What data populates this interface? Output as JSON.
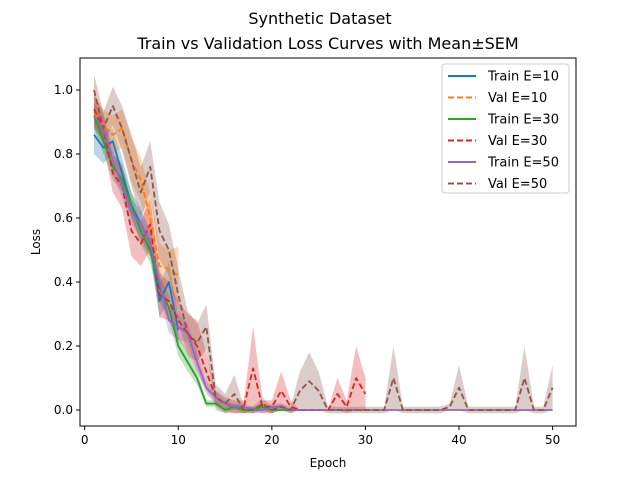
{
  "chart_data": {
    "type": "line",
    "title": "Synthetic Dataset",
    "subtitle": "Train vs Validation Loss Curves with Mean±SEM",
    "xlabel": "Epoch",
    "ylabel": "Loss",
    "xlim": [
      -0.5,
      52.5
    ],
    "ylim": [
      -0.05,
      1.1
    ],
    "xticks": [
      0,
      10,
      20,
      30,
      40,
      50
    ],
    "yticks": [
      0.0,
      0.2,
      0.4,
      0.6,
      0.8,
      1.0
    ],
    "grid": false,
    "legend_position": "top-right",
    "series": [
      {
        "name": "Train E=10",
        "color": "#1f77b4",
        "dash": "solid",
        "x": [
          1,
          2,
          3,
          4,
          5,
          6,
          7,
          8,
          9,
          10
        ],
        "y": [
          0.86,
          0.82,
          0.84,
          0.74,
          0.64,
          0.58,
          0.52,
          0.34,
          0.4,
          0.25
        ],
        "sem": [
          0.06,
          0.05,
          0.04,
          0.05,
          0.04,
          0.05,
          0.04,
          0.05,
          0.06,
          0.04
        ]
      },
      {
        "name": "Val E=10",
        "color": "#ff7f0e",
        "dash": "dashed",
        "x": [
          1,
          2,
          3,
          4,
          5,
          6,
          7,
          8,
          9,
          10
        ],
        "y": [
          0.93,
          0.89,
          0.86,
          0.88,
          0.78,
          0.72,
          0.6,
          0.45,
          0.44,
          0.42
        ],
        "sem": [
          0.05,
          0.05,
          0.06,
          0.06,
          0.07,
          0.07,
          0.08,
          0.07,
          0.06,
          0.09
        ]
      },
      {
        "name": "Train E=30",
        "color": "#2ca02c",
        "dash": "solid",
        "x": [
          1,
          2,
          3,
          4,
          5,
          6,
          7,
          8,
          9,
          10,
          11,
          12,
          13,
          14,
          15,
          16,
          17,
          18,
          19,
          20,
          21,
          22,
          23,
          24,
          25,
          26,
          27,
          28,
          29,
          30
        ],
        "y": [
          0.92,
          0.84,
          0.76,
          0.72,
          0.64,
          0.56,
          0.5,
          0.38,
          0.32,
          0.2,
          0.15,
          0.1,
          0.02,
          0.02,
          0.0,
          0.01,
          0.0,
          0.0,
          0.01,
          0.0,
          0.0,
          0.0,
          0.0,
          0.0,
          0.0,
          0.0,
          0.0,
          0.0,
          0.0,
          0.0
        ],
        "sem": [
          0.04,
          0.04,
          0.04,
          0.04,
          0.04,
          0.04,
          0.04,
          0.04,
          0.04,
          0.03,
          0.03,
          0.02,
          0.01,
          0.01,
          0.01,
          0.01,
          0.01,
          0.01,
          0.01,
          0.01,
          0,
          0,
          0,
          0,
          0,
          0,
          0,
          0,
          0,
          0
        ]
      },
      {
        "name": "Val E=30",
        "color": "#d62728",
        "dash": "dashed",
        "x": [
          1,
          2,
          3,
          4,
          5,
          6,
          7,
          8,
          9,
          10,
          11,
          12,
          13,
          14,
          15,
          16,
          17,
          18,
          19,
          20,
          21,
          22,
          23,
          24,
          25,
          26,
          27,
          28,
          29,
          30
        ],
        "y": [
          0.94,
          0.88,
          0.74,
          0.7,
          0.56,
          0.52,
          0.58,
          0.36,
          0.34,
          0.28,
          0.24,
          0.2,
          0.12,
          0.04,
          0.02,
          0.01,
          0.01,
          0.13,
          0.01,
          0.01,
          0.06,
          0.01,
          0.0,
          0.0,
          0.0,
          0.0,
          0.05,
          0.01,
          0.1,
          0.05
        ],
        "sem": [
          0.05,
          0.05,
          0.06,
          0.07,
          0.08,
          0.07,
          0.08,
          0.07,
          0.06,
          0.06,
          0.06,
          0.08,
          0.06,
          0.02,
          0.02,
          0.02,
          0.02,
          0.13,
          0.02,
          0.02,
          0.06,
          0.02,
          0,
          0,
          0,
          0,
          0.05,
          0.02,
          0.1,
          0.05
        ]
      },
      {
        "name": "Train E=50",
        "color": "#9467bd",
        "dash": "solid",
        "x": [
          1,
          2,
          3,
          4,
          5,
          6,
          7,
          8,
          9,
          10,
          11,
          12,
          13,
          14,
          15,
          16,
          17,
          18,
          19,
          20,
          21,
          22,
          23,
          24,
          25,
          26,
          27,
          28,
          29,
          30,
          31,
          32,
          33,
          34,
          35,
          36,
          37,
          38,
          39,
          40,
          41,
          42,
          43,
          44,
          45,
          46,
          47,
          48,
          49,
          50
        ],
        "y": [
          0.92,
          0.88,
          0.78,
          0.7,
          0.62,
          0.58,
          0.52,
          0.4,
          0.28,
          0.26,
          0.24,
          0.15,
          0.07,
          0.04,
          0.02,
          0.01,
          0.01,
          0.0,
          0.0,
          0.01,
          0.01,
          0.0,
          0.0,
          0.0,
          0.0,
          0.0,
          0.0,
          0.0,
          0.0,
          0.0,
          0.0,
          0.0,
          0.0,
          0.0,
          0.0,
          0.0,
          0.0,
          0.0,
          0.0,
          0.0,
          0.0,
          0.0,
          0.0,
          0.0,
          0.0,
          0.0,
          0.0,
          0.0,
          0.0,
          0.0
        ],
        "sem": [
          0.04,
          0.04,
          0.04,
          0.04,
          0.04,
          0.04,
          0.04,
          0.04,
          0.04,
          0.04,
          0.03,
          0.03,
          0.02,
          0.02,
          0.01,
          0.01,
          0.01,
          0.01,
          0.01,
          0.01,
          0.01,
          0,
          0,
          0,
          0,
          0,
          0,
          0,
          0,
          0,
          0,
          0,
          0,
          0,
          0,
          0,
          0,
          0,
          0,
          0,
          0,
          0,
          0,
          0,
          0,
          0,
          0,
          0,
          0,
          0
        ]
      },
      {
        "name": "Val E=50",
        "color": "#8c564b",
        "dash": "dashed",
        "x": [
          1,
          2,
          3,
          4,
          5,
          6,
          7,
          8,
          9,
          10,
          11,
          12,
          13,
          14,
          15,
          16,
          17,
          18,
          19,
          20,
          21,
          22,
          23,
          24,
          25,
          26,
          27,
          28,
          29,
          30,
          31,
          32,
          33,
          34,
          35,
          36,
          37,
          38,
          39,
          40,
          41,
          42,
          43,
          44,
          45,
          46,
          47,
          48,
          49,
          50
        ],
        "y": [
          1.0,
          0.88,
          0.95,
          0.88,
          0.78,
          0.68,
          0.76,
          0.56,
          0.5,
          0.36,
          0.24,
          0.21,
          0.26,
          0.04,
          0.02,
          0.05,
          0.0,
          0.0,
          0.02,
          0.0,
          0.01,
          0.0,
          0.06,
          0.09,
          0.06,
          0.0,
          0.0,
          0.0,
          0.0,
          0.0,
          0.0,
          0.0,
          0.1,
          0.0,
          0.0,
          0.0,
          0.0,
          0.0,
          0.01,
          0.07,
          0.0,
          0.0,
          0.0,
          0.0,
          0.0,
          0.0,
          0.1,
          0.0,
          0.0,
          0.07
        ],
        "sem": [
          0.05,
          0.05,
          0.06,
          0.07,
          0.08,
          0.08,
          0.08,
          0.09,
          0.08,
          0.08,
          0.07,
          0.06,
          0.07,
          0.04,
          0.03,
          0.06,
          0.01,
          0.01,
          0.02,
          0.01,
          0.01,
          0.01,
          0.06,
          0.09,
          0.06,
          0.01,
          0.01,
          0.01,
          0.01,
          0.01,
          0.01,
          0.01,
          0.1,
          0.01,
          0.01,
          0.01,
          0.01,
          0.01,
          0.01,
          0.07,
          0.01,
          0.01,
          0.01,
          0.01,
          0.01,
          0.01,
          0.1,
          0.01,
          0.01,
          0.07
        ]
      }
    ]
  }
}
